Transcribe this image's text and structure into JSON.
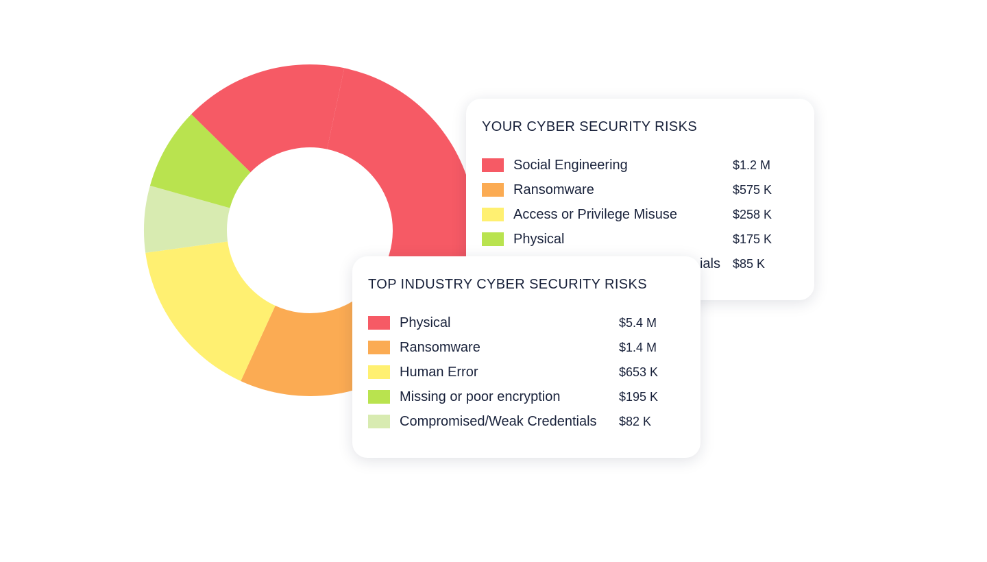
{
  "chart_data": [
    {
      "type": "pie",
      "subtype": "donut",
      "title": "",
      "slices": [
        {
          "label": "",
          "value": 35,
          "color": "#f65a65"
        },
        {
          "label": "",
          "value": 18.5,
          "color": "#fbab53"
        },
        {
          "label": "",
          "value": 16,
          "color": "#fff071"
        },
        {
          "label": "",
          "value": 6.5,
          "color": "#d8ebb1"
        },
        {
          "label": "",
          "value": 8,
          "color": "#b9e34f"
        },
        {
          "label": "",
          "value": 16,
          "color": "#f65a65"
        }
      ]
    },
    {
      "type": "table",
      "title": "YOUR CYBER SECURITY RISKS",
      "rows": [
        {
          "label": "Social Engineering",
          "value": "$1.2 M",
          "color": "#f65a65"
        },
        {
          "label": "Ransomware",
          "value": "$575 K",
          "color": "#fbab53"
        },
        {
          "label": "Access or Privilege Misuse",
          "value": "$258 K",
          "color": "#fff071"
        },
        {
          "label": "Physical",
          "value": "$175 K",
          "color": "#b9e34f"
        },
        {
          "label": "ials",
          "value": "$85 K",
          "color": "#d8ebb1"
        }
      ]
    },
    {
      "type": "table",
      "title": "TOP INDUSTRY CYBER SECURITY RISKS",
      "rows": [
        {
          "label": "Physical",
          "value": "$5.4 M",
          "color": "#f65a65"
        },
        {
          "label": "Ransomware",
          "value": "$1.4 M",
          "color": "#fbab53"
        },
        {
          "label": "Human Error",
          "value": "$653 K",
          "color": "#fff071"
        },
        {
          "label": "Missing or poor encryption",
          "value": "$195 K",
          "color": "#b9e34f"
        },
        {
          "label": "Compromised/Weak Credentials",
          "value": "$82 K",
          "color": "#d8ebb1"
        }
      ]
    }
  ]
}
